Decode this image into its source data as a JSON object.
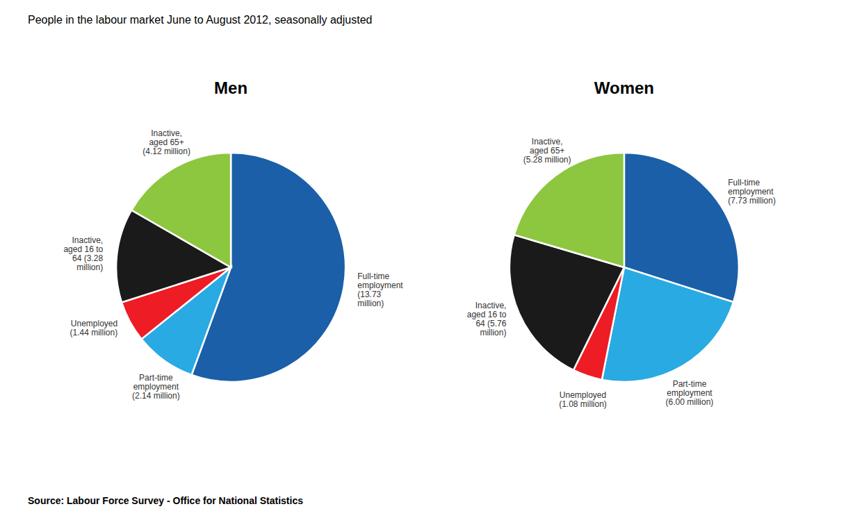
{
  "title": "People in the labour market June to August 2012, seasonally adjusted",
  "source": "Source: Labour Force Survey - Office for National Statistics",
  "chart_data": [
    {
      "type": "pie",
      "title": "Men",
      "values": [
        13.73,
        2.14,
        1.44,
        3.28,
        4.12
      ],
      "value_labels": [
        "Full-time\nemployment\n(13.73\nmillion)",
        "Part-time\nemployment\n(2.14 million)",
        "Unemployed\n(1.44 million)",
        "Inactive,\naged 16 to\n64 (3.28\nmillion)",
        "Inactive,\naged 65+\n(4.12 million)"
      ],
      "colors": [
        "#1a5fa8",
        "#29aae2",
        "#ee1c24",
        "#1a1a1a",
        "#8dc63f"
      ],
      "data_labels": true
    },
    {
      "type": "pie",
      "title": "Women",
      "values": [
        7.73,
        6.0,
        1.08,
        5.76,
        5.28
      ],
      "value_labels": [
        "Full-time\nemployment\n(7.73 million)",
        "Part-time\nemployment\n(6.00 million)",
        "Unemployed\n(1.08 million)",
        "Inactive,\naged 16 to\n64 (5.76\nmillion)",
        "Inactive,\naged 65+\n(5.28 million)"
      ],
      "colors": [
        "#1a5fa8",
        "#29aae2",
        "#ee1c24",
        "#1a1a1a",
        "#8dc63f"
      ],
      "data_labels": true
    }
  ]
}
